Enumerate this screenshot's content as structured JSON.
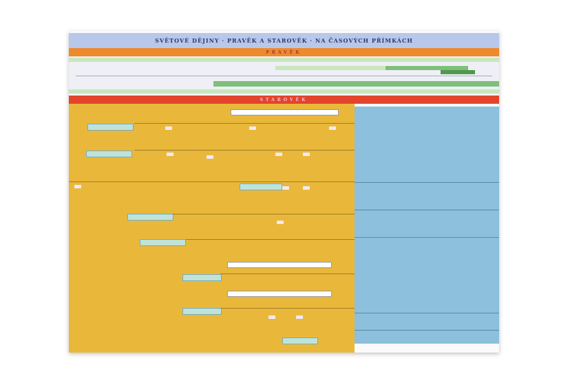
{
  "poster": {
    "title": "SVĚTOVÉ DĚJINY · PRAVĚK A STAROVĚK · NA ČASOVÝCH PŘÍMKÁCH",
    "band_prehistory": "PRAVĚK",
    "band_antiquity": "STAROVĚK"
  },
  "colors": {
    "title_band": "#b8c8ea",
    "prehistory_band": "#ec8a2c",
    "antiquity_band": "#e2452c",
    "left_panel": "#e9b83a",
    "right_panel": "#8cc0dc"
  }
}
